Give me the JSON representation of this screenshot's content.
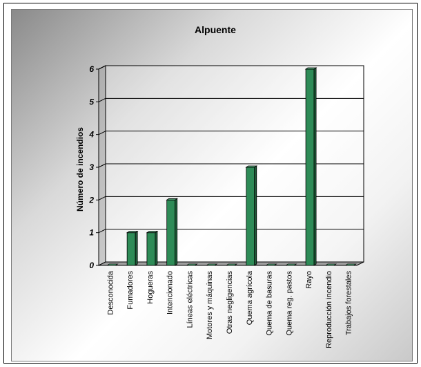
{
  "chart_data": {
    "type": "bar",
    "title": "Alpuente",
    "xlabel": "",
    "ylabel": "Número de incendios",
    "ylim": [
      0,
      6
    ],
    "yticks": [
      0,
      1,
      2,
      3,
      4,
      5,
      6
    ],
    "grid": true,
    "categories": [
      "Desconocida",
      "Fumadores",
      "Hogueras",
      "Intencionado",
      "Líneas eléctricas",
      "Motores y máquinas",
      "Otras negligencias",
      "Quema agrícola",
      "Quema de basuras",
      "Quema reg. pastos",
      "Rayo",
      "Reproducción incendio",
      "Trabajos forestales"
    ],
    "values": [
      0,
      1,
      1,
      2,
      0,
      0,
      0,
      3,
      0,
      0,
      6,
      0,
      0
    ],
    "colors": {
      "bar_front": "#2e8b57",
      "bar_side": "#1f5f3b",
      "bar_top": "#56b07e"
    }
  }
}
